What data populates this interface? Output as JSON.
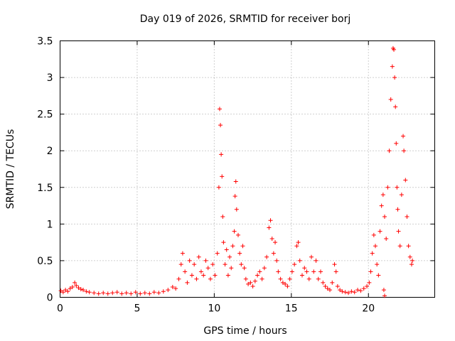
{
  "chart_data": {
    "type": "scatter",
    "title": "Day 019 of 2026, SRMTID for receiver borj",
    "xlabel": "GPS time / hours",
    "ylabel": "SRMTID / TECUs",
    "xlim": [
      0,
      24.3
    ],
    "ylim": [
      0,
      3.5
    ],
    "xticks": [
      "0",
      "5",
      "10",
      "15",
      "20"
    ],
    "xtick_values": [
      0,
      5,
      10,
      15,
      20
    ],
    "yticks": [
      "0",
      "0.5",
      "1",
      "1.5",
      "2",
      "2.5",
      "3",
      "3.5"
    ],
    "ytick_values": [
      0,
      0.5,
      1,
      1.5,
      2,
      2.5,
      3,
      3.5
    ],
    "grid": true,
    "marker": "+",
    "color": "#ff0000",
    "series": [
      {
        "name": "SRMTID",
        "points": [
          [
            0.05,
            0.09
          ],
          [
            0.2,
            0.07
          ],
          [
            0.35,
            0.1
          ],
          [
            0.5,
            0.08
          ],
          [
            0.65,
            0.12
          ],
          [
            0.8,
            0.14
          ],
          [
            0.95,
            0.2
          ],
          [
            1.05,
            0.16
          ],
          [
            1.2,
            0.13
          ],
          [
            1.35,
            0.11
          ],
          [
            1.5,
            0.1
          ],
          [
            1.7,
            0.08
          ],
          [
            1.9,
            0.07
          ],
          [
            2.2,
            0.06
          ],
          [
            2.5,
            0.05
          ],
          [
            2.8,
            0.06
          ],
          [
            3.1,
            0.05
          ],
          [
            3.4,
            0.06
          ],
          [
            3.7,
            0.07
          ],
          [
            4.0,
            0.05
          ],
          [
            4.3,
            0.06
          ],
          [
            4.6,
            0.05
          ],
          [
            4.9,
            0.07
          ],
          [
            5.2,
            0.05
          ],
          [
            5.5,
            0.06
          ],
          [
            5.8,
            0.05
          ],
          [
            6.1,
            0.07
          ],
          [
            6.4,
            0.06
          ],
          [
            6.7,
            0.08
          ],
          [
            7.0,
            0.1
          ],
          [
            7.3,
            0.14
          ],
          [
            7.5,
            0.12
          ],
          [
            7.7,
            0.25
          ],
          [
            7.85,
            0.45
          ],
          [
            7.95,
            0.6
          ],
          [
            8.1,
            0.35
          ],
          [
            8.25,
            0.2
          ],
          [
            8.4,
            0.5
          ],
          [
            8.55,
            0.3
          ],
          [
            8.7,
            0.45
          ],
          [
            8.85,
            0.25
          ],
          [
            9.0,
            0.55
          ],
          [
            9.15,
            0.35
          ],
          [
            9.3,
            0.3
          ],
          [
            9.45,
            0.5
          ],
          [
            9.6,
            0.4
          ],
          [
            9.75,
            0.25
          ],
          [
            9.9,
            0.45
          ],
          [
            10.05,
            0.3
          ],
          [
            10.2,
            0.6
          ],
          [
            10.3,
            1.5
          ],
          [
            10.35,
            2.57
          ],
          [
            10.4,
            2.35
          ],
          [
            10.45,
            1.95
          ],
          [
            10.5,
            1.65
          ],
          [
            10.55,
            1.1
          ],
          [
            10.6,
            0.75
          ],
          [
            10.7,
            0.45
          ],
          [
            10.8,
            0.65
          ],
          [
            10.9,
            0.3
          ],
          [
            11.0,
            0.55
          ],
          [
            11.1,
            0.4
          ],
          [
            11.2,
            0.7
          ],
          [
            11.3,
            0.9
          ],
          [
            11.35,
            1.38
          ],
          [
            11.4,
            1.58
          ],
          [
            11.45,
            1.2
          ],
          [
            11.55,
            0.85
          ],
          [
            11.65,
            0.6
          ],
          [
            11.75,
            0.45
          ],
          [
            11.85,
            0.7
          ],
          [
            11.95,
            0.4
          ],
          [
            12.05,
            0.25
          ],
          [
            12.2,
            0.18
          ],
          [
            12.35,
            0.2
          ],
          [
            12.5,
            0.15
          ],
          [
            12.65,
            0.22
          ],
          [
            12.8,
            0.3
          ],
          [
            12.95,
            0.35
          ],
          [
            13.1,
            0.25
          ],
          [
            13.25,
            0.4
          ],
          [
            13.4,
            0.55
          ],
          [
            13.55,
            0.95
          ],
          [
            13.65,
            1.05
          ],
          [
            13.75,
            0.8
          ],
          [
            13.85,
            0.6
          ],
          [
            13.95,
            0.75
          ],
          [
            14.05,
            0.5
          ],
          [
            14.15,
            0.35
          ],
          [
            14.3,
            0.25
          ],
          [
            14.45,
            0.2
          ],
          [
            14.6,
            0.18
          ],
          [
            14.75,
            0.15
          ],
          [
            14.9,
            0.25
          ],
          [
            15.05,
            0.35
          ],
          [
            15.2,
            0.45
          ],
          [
            15.35,
            0.7
          ],
          [
            15.45,
            0.75
          ],
          [
            15.55,
            0.5
          ],
          [
            15.7,
            0.3
          ],
          [
            15.85,
            0.4
          ],
          [
            16.0,
            0.35
          ],
          [
            16.15,
            0.25
          ],
          [
            16.3,
            0.55
          ],
          [
            16.45,
            0.35
          ],
          [
            16.6,
            0.5
          ],
          [
            16.75,
            0.25
          ],
          [
            16.9,
            0.35
          ],
          [
            17.05,
            0.2
          ],
          [
            17.2,
            0.15
          ],
          [
            17.35,
            0.12
          ],
          [
            17.5,
            0.1
          ],
          [
            17.65,
            0.2
          ],
          [
            17.8,
            0.45
          ],
          [
            17.9,
            0.35
          ],
          [
            18.0,
            0.15
          ],
          [
            18.15,
            0.1
          ],
          [
            18.3,
            0.08
          ],
          [
            18.5,
            0.07
          ],
          [
            18.7,
            0.06
          ],
          [
            18.9,
            0.08
          ],
          [
            19.1,
            0.07
          ],
          [
            19.3,
            0.1
          ],
          [
            19.5,
            0.09
          ],
          [
            19.7,
            0.12
          ],
          [
            19.9,
            0.15
          ],
          [
            20.05,
            0.2
          ],
          [
            20.15,
            0.35
          ],
          [
            20.25,
            0.6
          ],
          [
            20.35,
            0.85
          ],
          [
            20.45,
            0.7
          ],
          [
            20.55,
            0.45
          ],
          [
            20.65,
            0.3
          ],
          [
            20.75,
            0.9
          ],
          [
            20.85,
            1.25
          ],
          [
            20.95,
            1.4
          ],
          [
            21.05,
            1.1
          ],
          [
            21.15,
            0.8
          ],
          [
            21.25,
            1.5
          ],
          [
            21.35,
            2.0
          ],
          [
            21.45,
            2.7
          ],
          [
            21.55,
            3.15
          ],
          [
            21.6,
            3.4
          ],
          [
            21.65,
            3.38
          ],
          [
            21.7,
            3.0
          ],
          [
            21.75,
            2.6
          ],
          [
            21.8,
            2.1
          ],
          [
            21.85,
            1.5
          ],
          [
            21.9,
            1.2
          ],
          [
            21.95,
            0.9
          ],
          [
            22.05,
            0.7
          ],
          [
            22.15,
            1.4
          ],
          [
            22.25,
            2.2
          ],
          [
            22.3,
            2.0
          ],
          [
            22.4,
            1.6
          ],
          [
            22.5,
            1.1
          ],
          [
            22.6,
            0.7
          ],
          [
            22.7,
            0.55
          ],
          [
            22.8,
            0.45
          ],
          [
            21.0,
            0.1
          ],
          [
            21.05,
            0.02
          ],
          [
            22.85,
            0.5
          ]
        ]
      }
    ]
  }
}
